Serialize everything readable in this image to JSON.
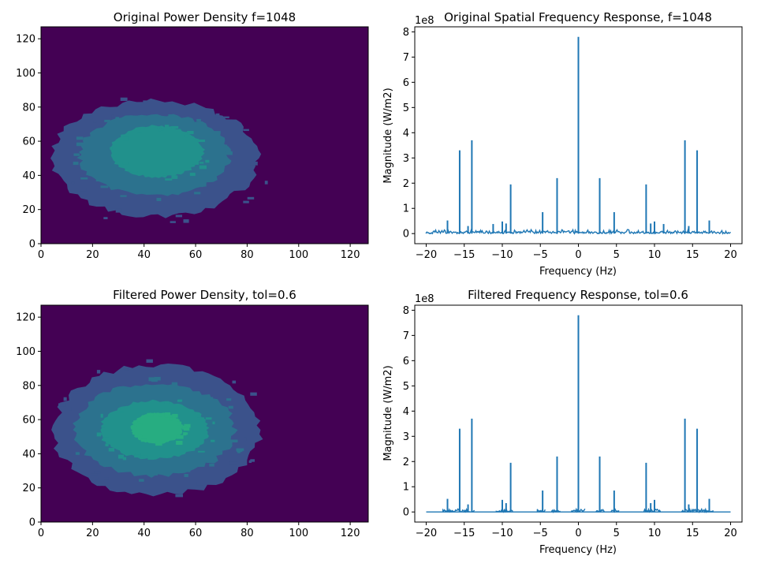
{
  "chart_data": [
    {
      "type": "heatmap",
      "title": "Original Power Density f=1048",
      "xlim": [
        0,
        127
      ],
      "ylim": [
        0,
        127
      ],
      "xticks": [
        0,
        20,
        40,
        60,
        80,
        100,
        120
      ],
      "yticks": [
        0,
        20,
        40,
        60,
        80,
        100,
        120
      ],
      "background": "#440154",
      "levels": [
        {
          "color": "#3b528b",
          "cx": 44,
          "cy": 50,
          "rx": 40,
          "ry": 34
        },
        {
          "color": "#2c728e",
          "cx": 44,
          "cy": 52,
          "rx": 29,
          "ry": 24
        },
        {
          "color": "#21918c",
          "cx": 45,
          "cy": 54,
          "rx": 18,
          "ry": 15
        }
      ]
    },
    {
      "type": "line",
      "title": "Original Spatial Frequency Response, f=1048",
      "xlabel": "Frequency (Hz)",
      "ylabel": "Magnitude (W/m2)",
      "offset_text": "1e8",
      "scale": 100000000,
      "xlim": [
        -21.5,
        21.5
      ],
      "ylim": [
        -0.4,
        8.2
      ],
      "xticks": [
        -20,
        -15,
        -10,
        -5,
        0,
        5,
        10,
        15,
        20
      ],
      "yticks": [
        0,
        1,
        2,
        3,
        4,
        5,
        6,
        7,
        8
      ],
      "color": "#1f77b4",
      "noise_floor": 0.12,
      "noise_range": [
        -20,
        20
      ],
      "peaks": [
        {
          "x": 0,
          "y": 7.8
        },
        {
          "x": -14.0,
          "y": 3.7
        },
        {
          "x": 14.0,
          "y": 3.7
        },
        {
          "x": -15.6,
          "y": 3.3
        },
        {
          "x": 15.6,
          "y": 3.3
        },
        {
          "x": -2.8,
          "y": 2.2
        },
        {
          "x": 2.8,
          "y": 2.2
        },
        {
          "x": -8.9,
          "y": 1.95
        },
        {
          "x": 8.9,
          "y": 1.95
        },
        {
          "x": -4.7,
          "y": 0.85
        },
        {
          "x": 4.7,
          "y": 0.85
        },
        {
          "x": -17.2,
          "y": 0.52
        },
        {
          "x": 17.2,
          "y": 0.52
        },
        {
          "x": -10.0,
          "y": 0.48
        },
        {
          "x": 10.0,
          "y": 0.48
        },
        {
          "x": -11.2,
          "y": 0.38
        },
        {
          "x": 11.2,
          "y": 0.38
        },
        {
          "x": -14.5,
          "y": 0.3
        },
        {
          "x": 14.5,
          "y": 0.3
        },
        {
          "x": -9.5,
          "y": 0.4
        },
        {
          "x": 9.5,
          "y": 0.4
        }
      ]
    },
    {
      "type": "heatmap",
      "title": "Filtered Power Density, tol=0.6",
      "xlim": [
        0,
        127
      ],
      "ylim": [
        0,
        127
      ],
      "xticks": [
        0,
        20,
        40,
        60,
        80,
        100,
        120
      ],
      "yticks": [
        0,
        20,
        40,
        60,
        80,
        100,
        120
      ],
      "background": "#440154",
      "levels": [
        {
          "color": "#3b528b",
          "cx": 45,
          "cy": 54,
          "rx": 40,
          "ry": 38
        },
        {
          "color": "#2c728e",
          "cx": 44,
          "cy": 54,
          "rx": 31,
          "ry": 27
        },
        {
          "color": "#21918c",
          "cx": 44,
          "cy": 54,
          "rx": 21,
          "ry": 17
        },
        {
          "color": "#27ad81",
          "cx": 45,
          "cy": 55,
          "rx": 10,
          "ry": 9
        }
      ]
    },
    {
      "type": "line",
      "title": "Filtered Frequency Response, tol=0.6",
      "xlabel": "Frequency (Hz)",
      "ylabel": "Magnitude (W/m2)",
      "offset_text": "1e8",
      "scale": 100000000,
      "xlim": [
        -21.5,
        21.5
      ],
      "ylim": [
        -0.4,
        8.2
      ],
      "xticks": [
        -20,
        -15,
        -10,
        -5,
        0,
        5,
        10,
        15,
        20
      ],
      "yticks": [
        0,
        1,
        2,
        3,
        4,
        5,
        6,
        7,
        8
      ],
      "color": "#1f77b4",
      "noise_floor": 0.1,
      "noise_bands": [
        [
          -17.8,
          -13.6
        ],
        [
          -10.8,
          -8.6
        ],
        [
          -5.4,
          -4.3
        ],
        [
          -3.5,
          -2.3
        ],
        [
          -0.9,
          0.9
        ],
        [
          2.3,
          3.5
        ],
        [
          4.3,
          5.4
        ],
        [
          8.6,
          10.8
        ],
        [
          13.6,
          17.8
        ]
      ],
      "peaks": [
        {
          "x": 0,
          "y": 7.8
        },
        {
          "x": -14.0,
          "y": 3.7
        },
        {
          "x": 14.0,
          "y": 3.7
        },
        {
          "x": -15.6,
          "y": 3.3
        },
        {
          "x": 15.6,
          "y": 3.3
        },
        {
          "x": -2.8,
          "y": 2.2
        },
        {
          "x": 2.8,
          "y": 2.2
        },
        {
          "x": -8.9,
          "y": 1.95
        },
        {
          "x": 8.9,
          "y": 1.95
        },
        {
          "x": -4.7,
          "y": 0.85
        },
        {
          "x": 4.7,
          "y": 0.85
        },
        {
          "x": -17.2,
          "y": 0.52
        },
        {
          "x": 17.2,
          "y": 0.52
        },
        {
          "x": -10.0,
          "y": 0.48
        },
        {
          "x": 10.0,
          "y": 0.48
        },
        {
          "x": -14.5,
          "y": 0.3
        },
        {
          "x": 14.5,
          "y": 0.3
        },
        {
          "x": -9.5,
          "y": 0.35
        },
        {
          "x": 9.5,
          "y": 0.35
        }
      ]
    }
  ]
}
